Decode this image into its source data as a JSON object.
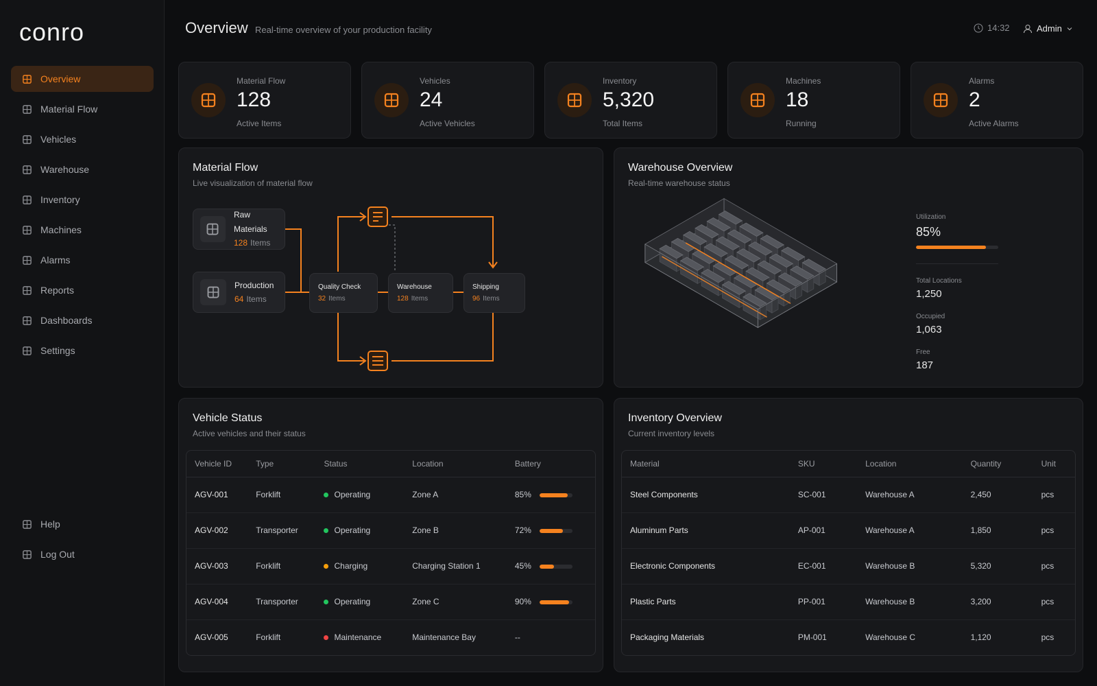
{
  "brand": "conro",
  "nav": {
    "items": [
      "Overview",
      "Material Flow",
      "Vehicles",
      "Warehouse",
      "Inventory",
      "Machines",
      "Alarms",
      "Reports",
      "Dashboards",
      "Settings"
    ],
    "bottom": [
      "Help",
      "Log Out"
    ]
  },
  "header": {
    "title": "Overview",
    "subtitle": "Real-time overview of your production facility",
    "time": "14:32",
    "user": "Admin"
  },
  "kpis": [
    {
      "label": "Material Flow",
      "value": "128",
      "caption": "Active Items"
    },
    {
      "label": "Vehicles",
      "value": "24",
      "caption": "Active Vehicles"
    },
    {
      "label": "Inventory",
      "value": "5,320",
      "caption": "Total Items"
    },
    {
      "label": "Machines",
      "value": "18",
      "caption": "Running"
    },
    {
      "label": "Alarms",
      "value": "2",
      "caption": "Active Alarms"
    }
  ],
  "material_flow": {
    "title": "Material Flow",
    "subtitle": "Live visualization of material flow",
    "nodes": [
      {
        "name": "Raw Materials",
        "count": "128",
        "unit": "Items"
      },
      {
        "name": "Production",
        "count": "64",
        "unit": "Items"
      },
      {
        "name": "Quality Check",
        "count": "32",
        "unit": "Items"
      },
      {
        "name": "Warehouse",
        "count": "128",
        "unit": "Items"
      },
      {
        "name": "Shipping",
        "count": "96",
        "unit": "Items"
      }
    ]
  },
  "warehouse": {
    "title": "Warehouse Overview",
    "subtitle": "Real-time warehouse status",
    "utilization": {
      "name": "Utilization",
      "value": 85,
      "label": "85%"
    },
    "stats": [
      {
        "name": "Total Locations",
        "value": "1,250"
      },
      {
        "name": "Occupied",
        "value": "1,063"
      },
      {
        "name": "Free",
        "value": "187"
      }
    ]
  },
  "vehicles": {
    "title": "Vehicle Status",
    "subtitle": "Active vehicles and their status",
    "columns": [
      "Vehicle ID",
      "Type",
      "Status",
      "Location",
      "Battery"
    ],
    "rows": [
      [
        "AGV-001",
        "Forklift",
        "Operating",
        "Zone A",
        {
          "value": 85,
          "label": "85%"
        }
      ],
      [
        "AGV-002",
        "Transporter",
        "Operating",
        "Zone B",
        {
          "value": 72,
          "label": "72%"
        }
      ],
      [
        "AGV-003",
        "Forklift",
        "Charging",
        "Charging Station 1",
        {
          "value": 45,
          "label": "45%"
        }
      ],
      [
        "AGV-004",
        "Transporter",
        "Operating",
        "Zone C",
        {
          "value": 90,
          "label": "90%"
        }
      ],
      [
        "AGV-005",
        "Forklift",
        "Maintenance",
        "Maintenance Bay",
        {
          "value": null,
          "label": "--"
        }
      ]
    ],
    "status_colors": {
      "Operating": "#22c55e",
      "Charging": "#f59e0b",
      "Maintenance": "#ef4444"
    }
  },
  "inventory": {
    "title": "Inventory Overview",
    "subtitle": "Current inventory levels",
    "columns": [
      "Material",
      "SKU",
      "Location",
      "Quantity",
      "Unit"
    ],
    "rows": [
      [
        "Steel Components",
        "SC-001",
        "Warehouse A",
        "2,450",
        "pcs"
      ],
      [
        "Aluminum Parts",
        "AP-001",
        "Warehouse A",
        "1,850",
        "pcs"
      ],
      [
        "Electronic Components",
        "EC-001",
        "Warehouse B",
        "5,320",
        "pcs"
      ],
      [
        "Plastic Parts",
        "PP-001",
        "Warehouse B",
        "3,200",
        "pcs"
      ],
      [
        "Packaging Materials",
        "PM-001",
        "Warehouse C",
        "1,120",
        "pcs"
      ]
    ]
  }
}
